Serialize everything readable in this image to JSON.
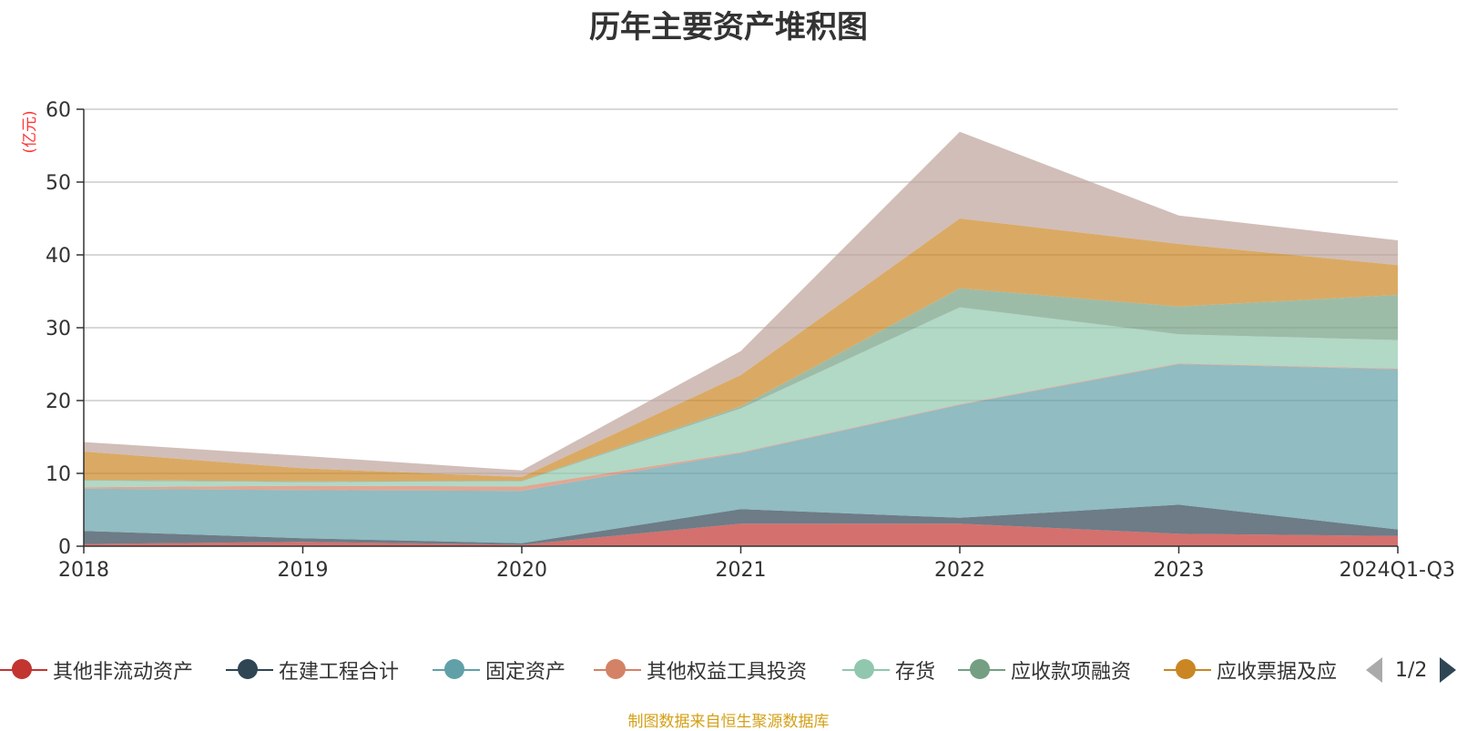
{
  "chart_data": {
    "type": "area",
    "stacked": true,
    "title": "历年主要资产堆积图",
    "ylabel": "(亿元)",
    "ylim": [
      0,
      60
    ],
    "yticks": [
      0,
      10,
      20,
      30,
      40,
      50,
      60
    ],
    "grid": true,
    "legend_position": "bottom",
    "categories": [
      "2018",
      "2019",
      "2020",
      "2021",
      "2022",
      "2023",
      "2024Q1-Q3"
    ],
    "series": [
      {
        "name": "其他非流动资产",
        "color": "#c23531",
        "values": [
          0.3,
          0.6,
          0.2,
          3.1,
          3.1,
          1.7,
          1.4
        ]
      },
      {
        "name": "在建工程合计",
        "color": "#2f4554",
        "values": [
          1.8,
          0.5,
          0.2,
          2.0,
          0.8,
          4.0,
          0.9
        ]
      },
      {
        "name": "固定资产",
        "color": "#61a0a8",
        "values": [
          5.8,
          6.6,
          7.2,
          7.7,
          15.5,
          19.3,
          22.0
        ]
      },
      {
        "name": "其他权益工具投资",
        "color": "#d48265",
        "values": [
          0.2,
          0.6,
          0.6,
          0.1,
          0.1,
          0.1,
          0.1
        ]
      },
      {
        "name": "存货",
        "color": "#91c7ae",
        "values": [
          0.9,
          0.5,
          0.7,
          6.0,
          13.3,
          4.0,
          3.9
        ]
      },
      {
        "name": "应收款项融资",
        "color": "#749f83",
        "values": [
          0.1,
          0.1,
          0.1,
          0.3,
          2.6,
          3.8,
          6.2
        ]
      },
      {
        "name": "应收票据及应",
        "color": "#ca8622",
        "values": [
          3.9,
          1.8,
          0.5,
          4.3,
          9.6,
          8.6,
          4.1
        ]
      },
      {
        "name": "",
        "color": "#bda29a",
        "values": [
          1.3,
          1.7,
          0.9,
          3.3,
          11.9,
          3.9,
          3.4
        ]
      }
    ]
  },
  "legend": {
    "items": [
      {
        "label": "其他非流动资产",
        "color": "#c23531"
      },
      {
        "label": "在建工程合计",
        "color": "#2f4554"
      },
      {
        "label": "固定资产",
        "color": "#61a0a8"
      },
      {
        "label": "其他权益工具投资",
        "color": "#d48265"
      },
      {
        "label": "存货",
        "color": "#91c7ae"
      },
      {
        "label": "应收款项融资",
        "color": "#749f83"
      },
      {
        "label": "应收票据及应",
        "color": "#ca8622"
      }
    ],
    "page_indicator": "1/2"
  },
  "footer": {
    "source": "制图数据来自恒生聚源数据库"
  }
}
